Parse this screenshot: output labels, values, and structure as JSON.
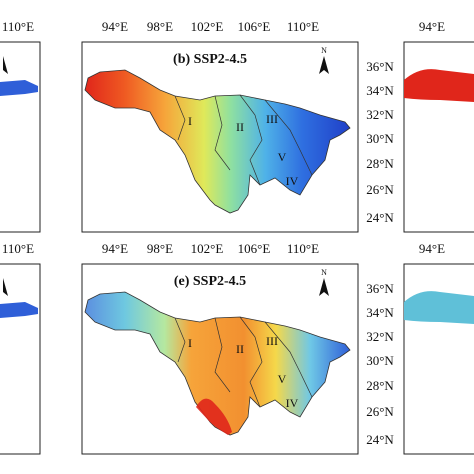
{
  "top_row": {
    "left_lon_label": "110°E",
    "lon_labels": [
      "94°E",
      "98°E",
      "102°E",
      "106°E",
      "110°E"
    ],
    "right_lon_label": "94°E",
    "lat_labels": [
      "36°N",
      "34°N",
      "32°N",
      "30°N",
      "28°N",
      "26°N",
      "24°N"
    ],
    "panel_title": "(b) SSP2-4.5",
    "north": "N",
    "regions": [
      "I",
      "II",
      "III",
      "IV",
      "V"
    ]
  },
  "bottom_row": {
    "left_lon_label": "110°E",
    "lon_labels": [
      "94°E",
      "98°E",
      "102°E",
      "106°E",
      "110°E"
    ],
    "right_lon_label": "94°E",
    "lat_labels": [
      "36°N",
      "34°N",
      "32°N",
      "30°N",
      "28°N",
      "26°N",
      "24°N"
    ],
    "panel_title": "(e) SSP2-4.5",
    "north": "N",
    "regions": [
      "I",
      "II",
      "III",
      "IV",
      "V"
    ]
  }
}
